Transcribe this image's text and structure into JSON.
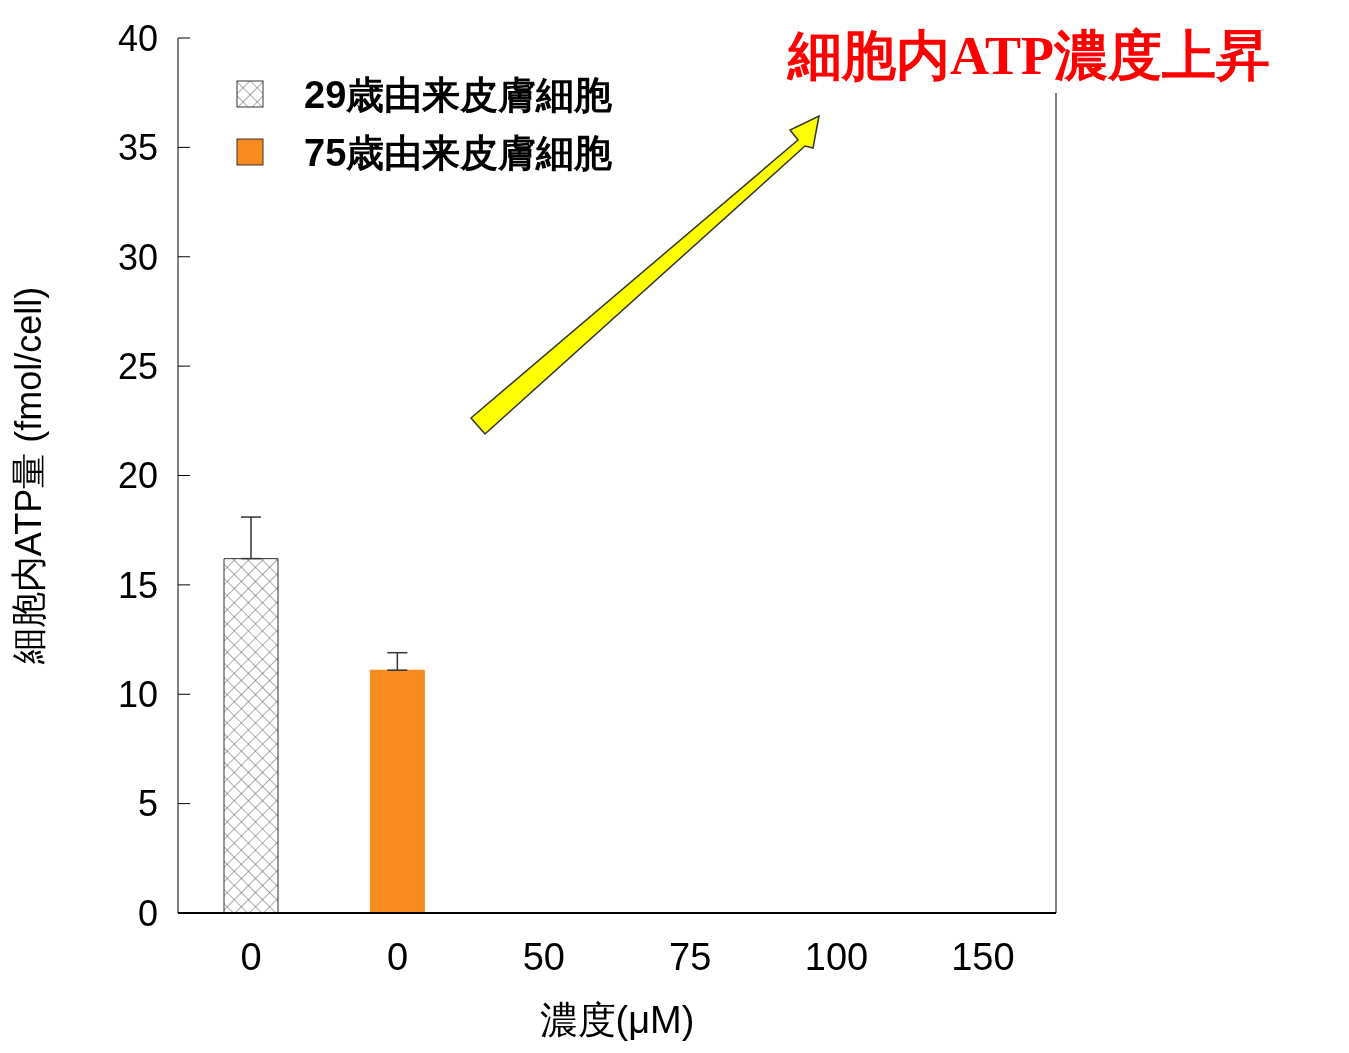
{
  "chart_data": {
    "type": "bar",
    "xlabel": "濃度(μM)",
    "ylabel": "細胞内ATP量 (fmol/cell)",
    "categories": [
      "0",
      "0",
      "50",
      "75",
      "100",
      "150"
    ],
    "series": [
      {
        "name": "29歳由来皮膚細胞",
        "color": "#333333",
        "values": [
          16.2,
          null,
          null,
          null,
          null,
          null
        ],
        "errors": [
          [
            16.2,
            18.1
          ],
          null,
          null,
          null,
          null,
          null
        ]
      },
      {
        "name": "75歳由来皮膚細胞",
        "color": "#f78b1e",
        "values": [
          null,
          11.1,
          null,
          null,
          null,
          null
        ],
        "errors": [
          null,
          [
            11.1,
            11.9
          ],
          null,
          null,
          null,
          null
        ]
      }
    ],
    "ylim": [
      0,
      40
    ],
    "yticks": [
      0,
      5,
      10,
      15,
      20,
      25,
      30,
      35,
      40
    ],
    "grid": false,
    "legend": "top left",
    "annotations": [
      "細胞内ATP濃度上昇"
    ]
  }
}
